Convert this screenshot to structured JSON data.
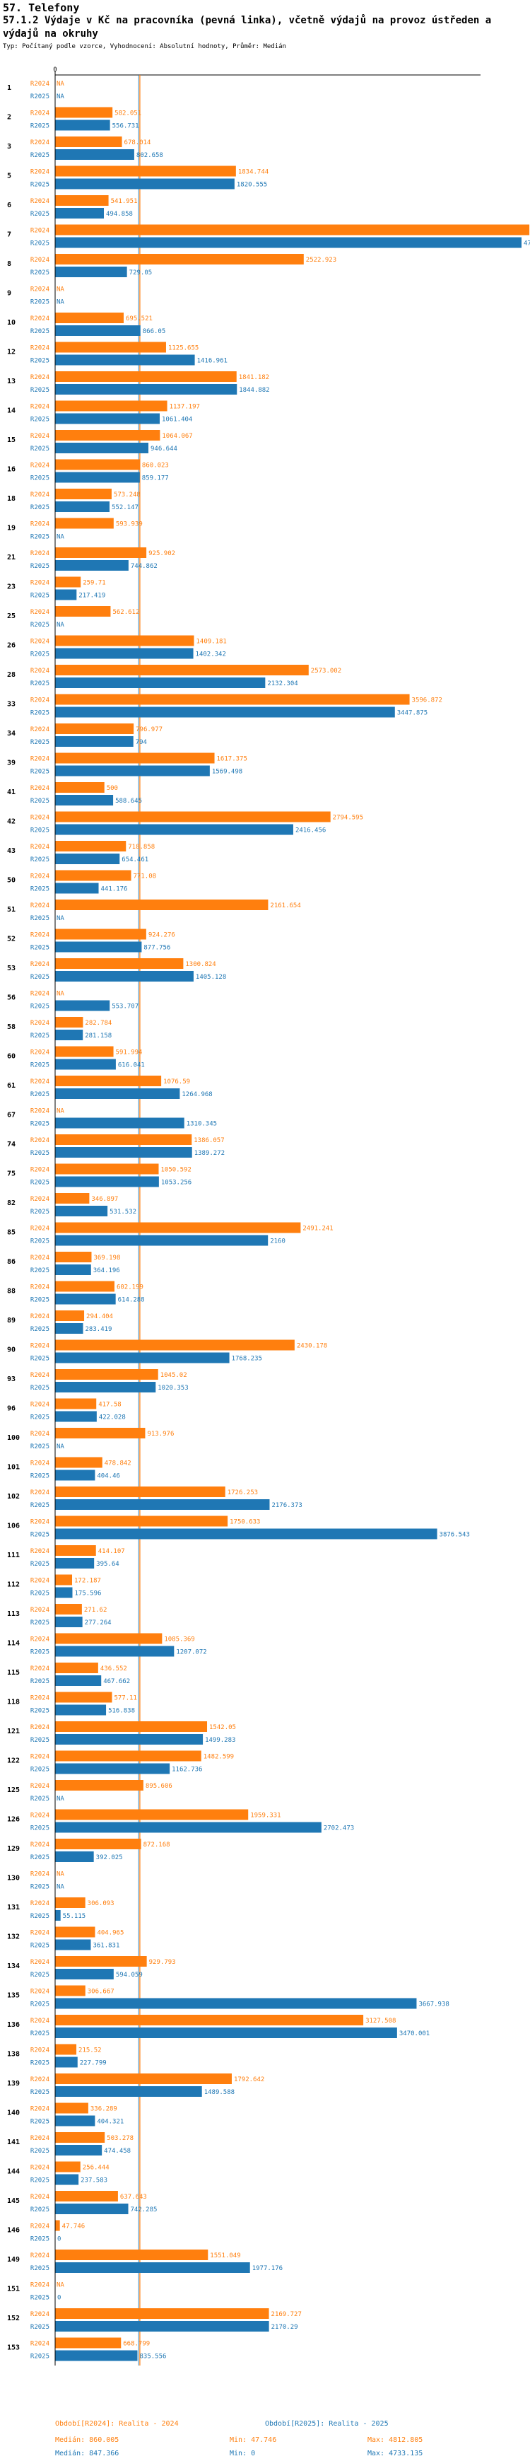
{
  "header": {
    "title": "57. Telefony",
    "subtitle": "57.1.2 Výdaje v Kč na pracovníka (pevná linka), včetně výdajů na provoz ústředen a výdajů na okruhy",
    "meta": "Typ: Počítaný podle vzorce, Vyhodnocení: Absolutní hodnoty, Průměr: Medián"
  },
  "colors": {
    "r2024": "#ff7f0e",
    "r2025": "#1f77b4",
    "median24": "#ff7f0e",
    "median25": "#1f77b4"
  },
  "chart_data": {
    "type": "bar",
    "orientation": "horizontal",
    "xlim": [
      0,
      4733.135
    ],
    "x_axis_ticks": [
      "0"
    ],
    "na_label": "NA",
    "series_labels": [
      "R2024",
      "R2025"
    ],
    "categories": [
      "1",
      "2",
      "3",
      "5",
      "6",
      "7",
      "8",
      "9",
      "10",
      "12",
      "13",
      "14",
      "15",
      "16",
      "18",
      "19",
      "21",
      "23",
      "25",
      "26",
      "28",
      "33",
      "34",
      "39",
      "41",
      "42",
      "43",
      "50",
      "51",
      "52",
      "53",
      "56",
      "58",
      "60",
      "61",
      "67",
      "74",
      "75",
      "82",
      "85",
      "86",
      "88",
      "89",
      "90",
      "93",
      "96",
      "100",
      "101",
      "102",
      "106",
      "111",
      "112",
      "113",
      "114",
      "115",
      "118",
      "121",
      "122",
      "125",
      "126",
      "129",
      "130",
      "131",
      "132",
      "134",
      "135",
      "136",
      "138",
      "139",
      "140",
      "141",
      "144",
      "145",
      "146",
      "149",
      "151",
      "152",
      "153"
    ],
    "series": [
      {
        "name": "R2024",
        "values": [
          null,
          582.051,
          678.014,
          1834.744,
          541.951,
          4812.805,
          2522.923,
          null,
          695.521,
          1125.655,
          1841.182,
          1137.197,
          1064.067,
          860.023,
          573.248,
          593.939,
          925.902,
          259.71,
          562.612,
          1409.181,
          2573.002,
          3596.872,
          796.977,
          1617.375,
          500,
          2794.595,
          718.858,
          771.08,
          2161.654,
          924.276,
          1300.824,
          null,
          282.784,
          591.994,
          1076.59,
          null,
          1386.057,
          1050.592,
          346.897,
          2491.241,
          369.198,
          602.199,
          294.404,
          2430.178,
          1045.02,
          417.58,
          913.976,
          478.842,
          1726.253,
          1750.633,
          414.107,
          172.187,
          271.62,
          1085.369,
          436.552,
          577.11,
          1542.05,
          1482.599,
          895.606,
          1959.331,
          872.168,
          null,
          306.093,
          404.965,
          929.793,
          306.667,
          3127.508,
          215.52,
          1792.642,
          336.289,
          503.278,
          256.444,
          637.643,
          47.746,
          1551.049,
          null,
          2169.727,
          668.799
        ]
      },
      {
        "name": "R2025",
        "values": [
          null,
          556.731,
          802.658,
          1820.555,
          494.858,
          4733.135,
          729.05,
          null,
          866.05,
          1416.961,
          1844.882,
          1061.404,
          946.644,
          859.177,
          552.147,
          null,
          744.862,
          217.419,
          null,
          1402.342,
          2132.304,
          3447.875,
          794,
          1569.498,
          588.645,
          2416.456,
          654.461,
          441.176,
          null,
          877.756,
          1405.128,
          553.707,
          281.158,
          616.041,
          1264.968,
          1310.345,
          1389.272,
          1053.256,
          531.532,
          2160,
          364.196,
          614.288,
          283.419,
          1768.235,
          1020.353,
          422.028,
          null,
          404.46,
          2176.373,
          3876.543,
          395.64,
          175.596,
          277.264,
          1207.072,
          467.662,
          516.838,
          1499.283,
          1162.736,
          null,
          2702.473,
          392.025,
          null,
          55.115,
          361.831,
          594.059,
          3667.938,
          3470.001,
          227.799,
          1489.588,
          404.321,
          474.458,
          237.583,
          742.285,
          0,
          1977.176,
          0,
          2170.29,
          835.556
        ]
      }
    ],
    "medians": {
      "R2024": 860.005,
      "R2025": 847.366
    }
  },
  "footer": {
    "legend24": "Období[R2024]: Realita - 2024",
    "legend25": "Období[R2025]: Realita - 2025",
    "median24": "Medián: 860.005",
    "median25": "Medián: 847.366",
    "min24": "Min: 47.746",
    "min25": "Min: 0",
    "max24": "Max: 4812.805",
    "max25": "Max: 4733.135"
  }
}
